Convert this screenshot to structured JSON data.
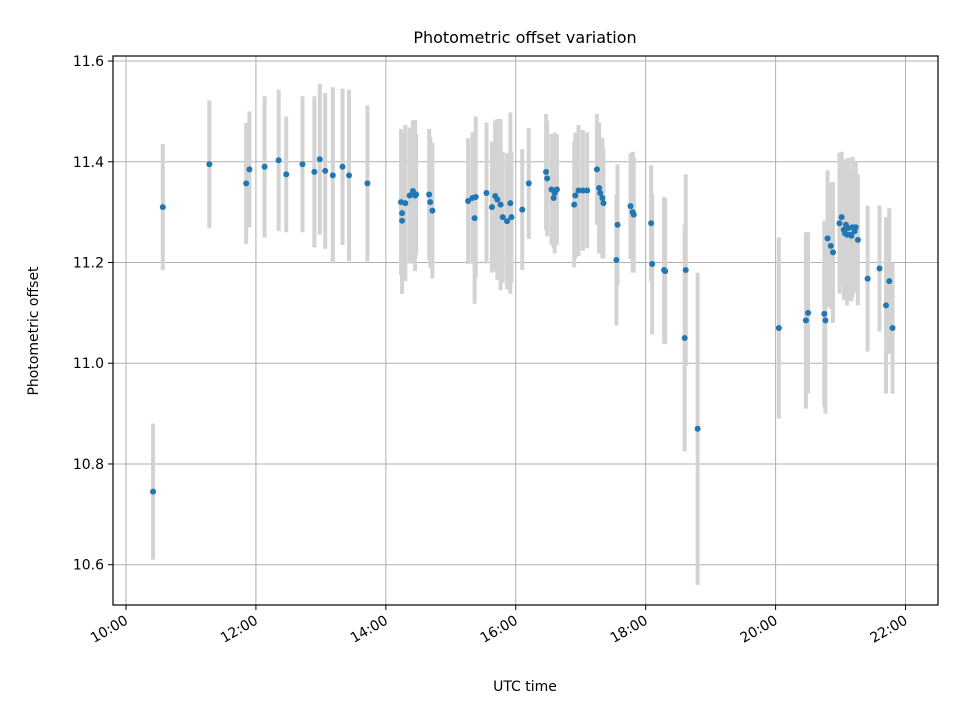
{
  "chart_data": {
    "type": "scatter",
    "title": "Photometric offset variation",
    "xlabel": "UTC time",
    "ylabel": "Photometric offset",
    "x_unit": "UTC HH:MM",
    "xlim": [
      "09:48",
      "22:30"
    ],
    "ylim": [
      10.52,
      11.61
    ],
    "x_ticks": [
      "10:00",
      "12:00",
      "14:00",
      "16:00",
      "18:00",
      "20:00",
      "22:00"
    ],
    "y_ticks": [
      "10.6",
      "10.8",
      "11.0",
      "11.2",
      "11.4",
      "11.6"
    ],
    "grid": true,
    "x_tick_rotation": "30deg",
    "colors": {
      "points": "#1f77b4",
      "error_bars": "#d3d3d3",
      "grid": "#b0b0b0"
    },
    "series": [
      {
        "x": [
          "10:25",
          "10:34",
          "11:17",
          "11:51",
          "11:54",
          "12:08",
          "12:21",
          "12:28",
          "12:43",
          "12:54",
          "12:59",
          "13:04",
          "13:11",
          "13:20",
          "13:26",
          "13:43",
          "14:14",
          "14:15",
          "14:15",
          "14:18",
          "14:22",
          "14:25",
          "14:27",
          "14:28",
          "14:40",
          "14:41",
          "14:43",
          "15:16",
          "15:20",
          "15:22",
          "15:23",
          "15:33",
          "15:38",
          "15:41",
          "15:43",
          "15:46",
          "15:48",
          "15:52",
          "15:55",
          "15:56",
          "16:06",
          "16:12",
          "16:28",
          "16:29",
          "16:33",
          "16:35",
          "16:36",
          "16:38",
          "16:54",
          "16:55",
          "16:58",
          "17:02",
          "17:06",
          "17:15",
          "17:17",
          "17:18",
          "17:20",
          "17:21",
          "17:33",
          "17:34",
          "17:46",
          "17:48",
          "17:49",
          "18:05",
          "18:06",
          "18:17",
          "18:18",
          "18:36",
          "18:37",
          "18:48",
          "20:03",
          "20:28",
          "20:30",
          "20:45",
          "20:46",
          "20:48",
          "20:51",
          "20:53",
          "20:59",
          "21:01",
          "21:03",
          "21:04",
          "21:05",
          "21:06",
          "21:07",
          "21:09",
          "21:10",
          "21:11",
          "21:13",
          "21:14",
          "21:16",
          "21:25",
          "21:36",
          "21:42",
          "21:45",
          "21:48"
        ],
        "y": [
          10.745,
          11.31,
          11.395,
          11.357,
          11.385,
          11.39,
          11.403,
          11.375,
          11.395,
          11.38,
          11.405,
          11.382,
          11.373,
          11.39,
          11.373,
          11.357,
          11.32,
          11.298,
          11.283,
          11.318,
          11.333,
          11.342,
          11.333,
          11.335,
          11.335,
          11.32,
          11.303,
          11.322,
          11.328,
          11.288,
          11.33,
          11.338,
          11.31,
          11.332,
          11.325,
          11.315,
          11.29,
          11.282,
          11.318,
          11.29,
          11.305,
          11.357,
          11.38,
          11.367,
          11.345,
          11.328,
          11.338,
          11.345,
          11.315,
          11.333,
          11.343,
          11.343,
          11.343,
          11.385,
          11.348,
          11.338,
          11.328,
          11.318,
          11.205,
          11.275,
          11.312,
          11.3,
          11.295,
          11.278,
          11.197,
          11.185,
          11.183,
          11.05,
          11.185,
          10.87,
          11.07,
          11.085,
          11.1,
          11.098,
          11.085,
          11.248,
          11.233,
          11.22,
          11.278,
          11.29,
          11.265,
          11.258,
          11.275,
          11.255,
          11.268,
          11.255,
          11.253,
          11.27,
          11.262,
          11.27,
          11.245,
          11.168,
          11.188,
          11.115,
          11.163,
          11.07
        ],
        "err": [
          0.135,
          0.125,
          0.127,
          0.12,
          0.115,
          0.14,
          0.14,
          0.115,
          0.135,
          0.15,
          0.15,
          0.155,
          0.175,
          0.155,
          0.17,
          0.155,
          0.145,
          0.16,
          0.145,
          0.155,
          0.135,
          0.14,
          0.15,
          0.12,
          0.13,
          0.13,
          0.135,
          0.125,
          0.13,
          0.17,
          0.16,
          0.14,
          0.13,
          0.15,
          0.16,
          0.17,
          0.13,
          0.135,
          0.18,
          0.13,
          0.12,
          0.11,
          0.115,
          0.115,
          0.11,
          0.1,
          0.12,
          0.11,
          0.125,
          0.125,
          0.13,
          0.12,
          0.115,
          0.11,
          0.13,
          0.11,
          0.12,
          0.11,
          0.13,
          0.12,
          0.105,
          0.12,
          0.115,
          0.115,
          0.14,
          0.145,
          0.145,
          0.225,
          0.19,
          0.31,
          0.18,
          0.175,
          0.16,
          0.185,
          0.185,
          0.135,
          0.125,
          0.14,
          0.14,
          0.13,
          0.14,
          0.13,
          0.13,
          0.14,
          0.14,
          0.13,
          0.13,
          0.14,
          0.12,
          0.13,
          0.13,
          0.145,
          0.125,
          0.175,
          0.145,
          0.13
        ]
      }
    ]
  }
}
